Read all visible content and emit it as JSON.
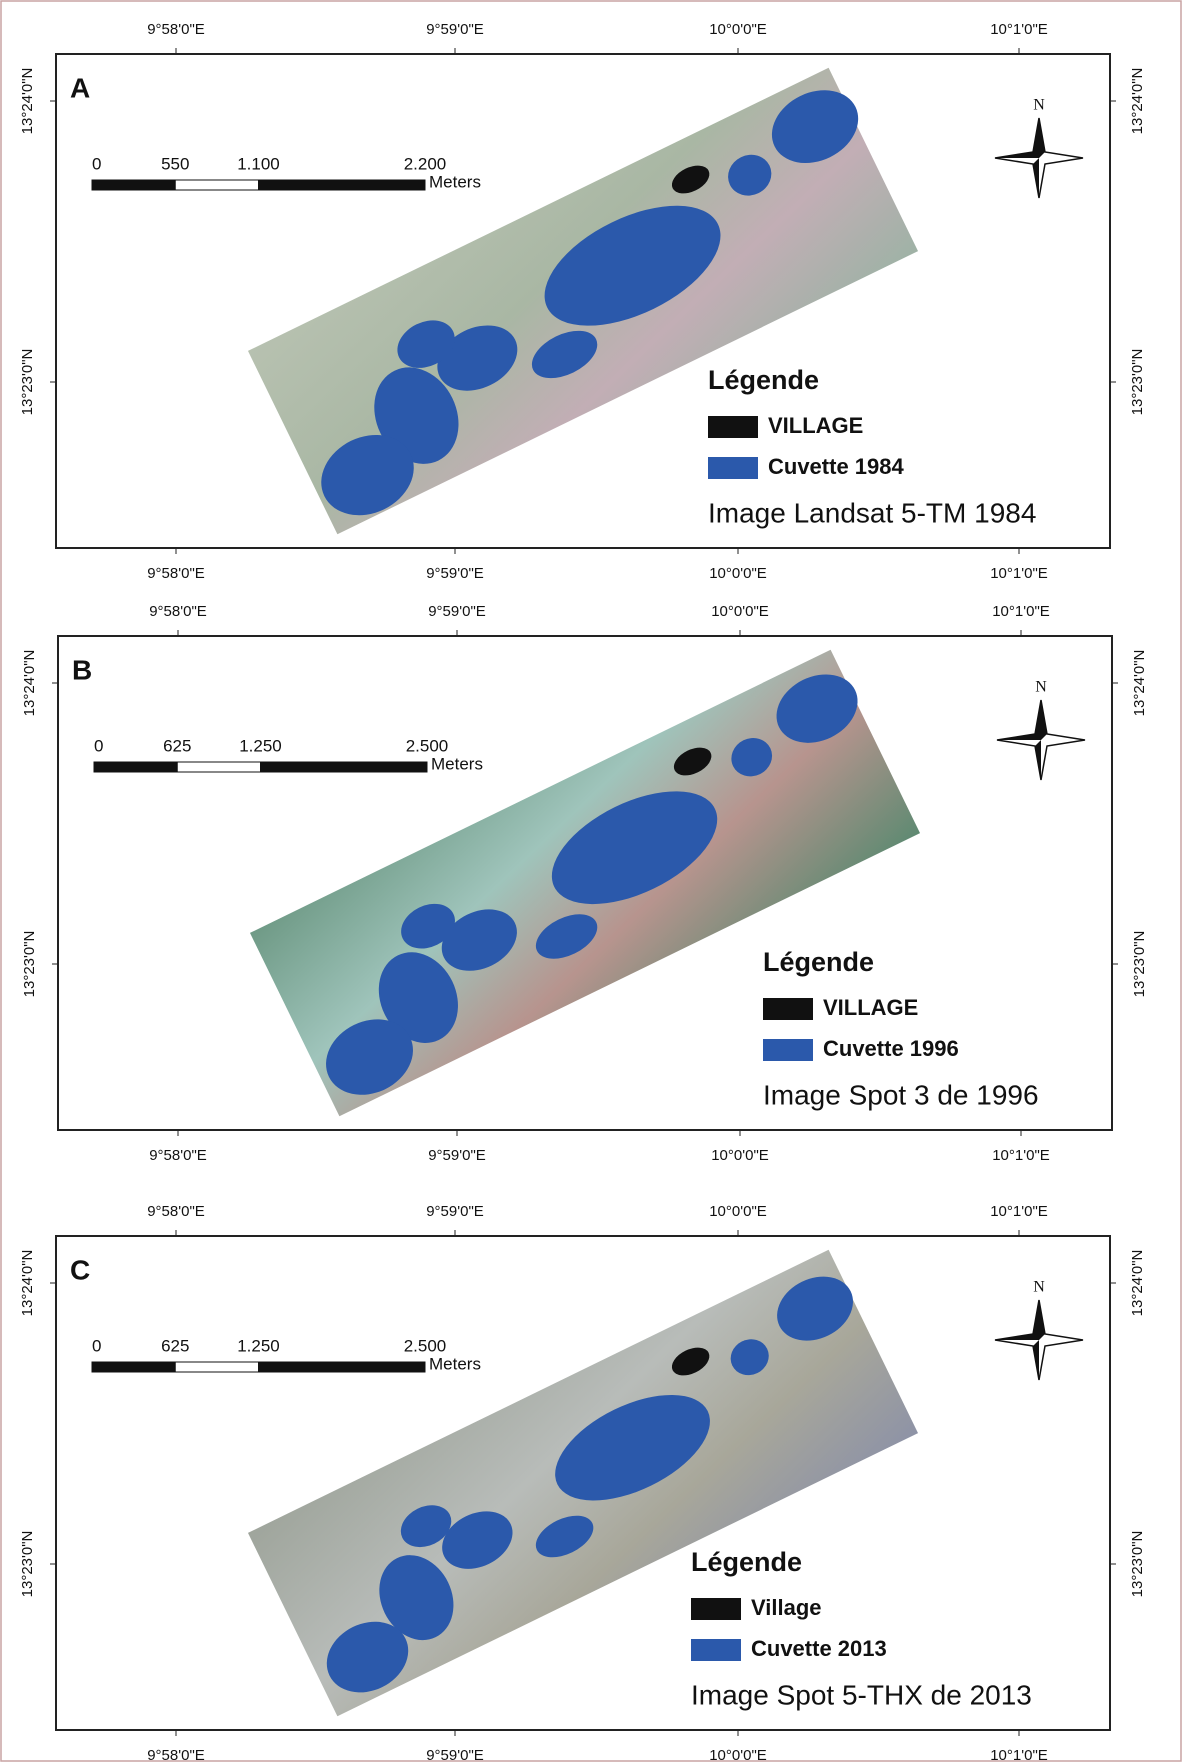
{
  "panels": [
    {
      "letter": "A",
      "lon_labels": [
        "9°58'0\"E",
        "9°59'0\"E",
        "10°0'0\"E",
        "10°1'0\"E"
      ],
      "lat_labels": [
        "13°24'0\"N",
        "13°23'0\"N"
      ],
      "scale_labels": [
        "0",
        "550",
        "1.100",
        "2.200"
      ],
      "scale_unit": "Meters",
      "north": "N",
      "legend_title": "Légende",
      "legend_items": [
        "VILLAGE",
        "Cuvette 1984"
      ],
      "caption": "Image Landsat 5-TM 1984"
    },
    {
      "letter": "B",
      "lon_labels": [
        "9°58'0\"E",
        "9°59'0\"E",
        "10°0'0\"E",
        "10°1'0\"E"
      ],
      "lat_labels": [
        "13°24'0\"N",
        "13°23'0\"N"
      ],
      "scale_labels": [
        "0",
        "625",
        "1.250",
        "2.500"
      ],
      "scale_unit": "Meters",
      "north": "N",
      "legend_title": "Légende",
      "legend_items": [
        "VILLAGE",
        "Cuvette 1996"
      ],
      "caption": "Image Spot 3 de 1996"
    },
    {
      "letter": "C",
      "lon_labels": [
        "9°58'0\"E",
        "9°59'0\"E",
        "10°0'0\"E",
        "10°1'0\"E"
      ],
      "lat_labels": [
        "13°24'0\"N",
        "13°23'0\"N"
      ],
      "scale_labels": [
        "0",
        "625",
        "1.250",
        "2.500"
      ],
      "scale_unit": "Meters",
      "north": "N",
      "legend_title": "Légende",
      "legend_items": [
        "Village",
        "Cuvette 2013"
      ],
      "caption": "Image Spot 5-THX de 2013"
    }
  ]
}
